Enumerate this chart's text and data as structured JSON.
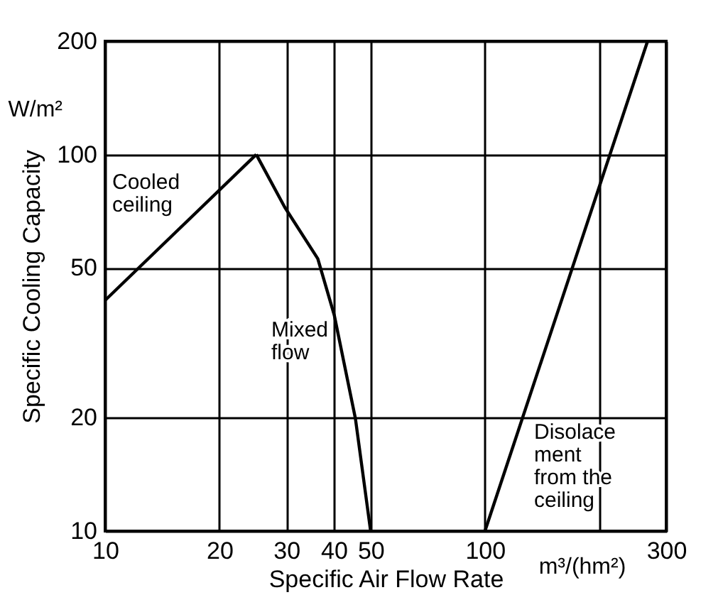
{
  "chart_data": {
    "type": "line",
    "xlabel": "Specific Air Flow Rate",
    "ylabel": "Specific Cooling Capacity",
    "log": "xy",
    "grid": true,
    "legend": false,
    "line_style": "solid",
    "marker": "none",
    "xlim": [
      10,
      300
    ],
    "xticks": [
      10,
      20,
      30,
      40,
      50,
      100,
      {
        "value": 200,
        "label": null
      },
      300
    ],
    "ylim": [
      10,
      200
    ],
    "yticks": [
      10,
      20,
      50,
      100,
      200
    ],
    "annotations": [
      "W/m²",
      "m³/(hm²)"
    ],
    "series": [
      {
        "name": "Cooled ceiling",
        "color": "#000000",
        "x": [
          10,
          25
        ],
        "values": [
          41,
          100
        ]
      },
      {
        "name": "Mixed flow",
        "color": "#000000",
        "x": [
          25,
          29.7,
          36.3,
          40.1,
          45.6,
          50
        ],
        "values": [
          100,
          72.5,
          52.9,
          37.5,
          19.9,
          10
        ]
      },
      {
        "name": "Disolacement from the ceiling",
        "color": "#000000",
        "x": [
          100,
          268
        ],
        "values": [
          10,
          200
        ]
      }
    ]
  }
}
